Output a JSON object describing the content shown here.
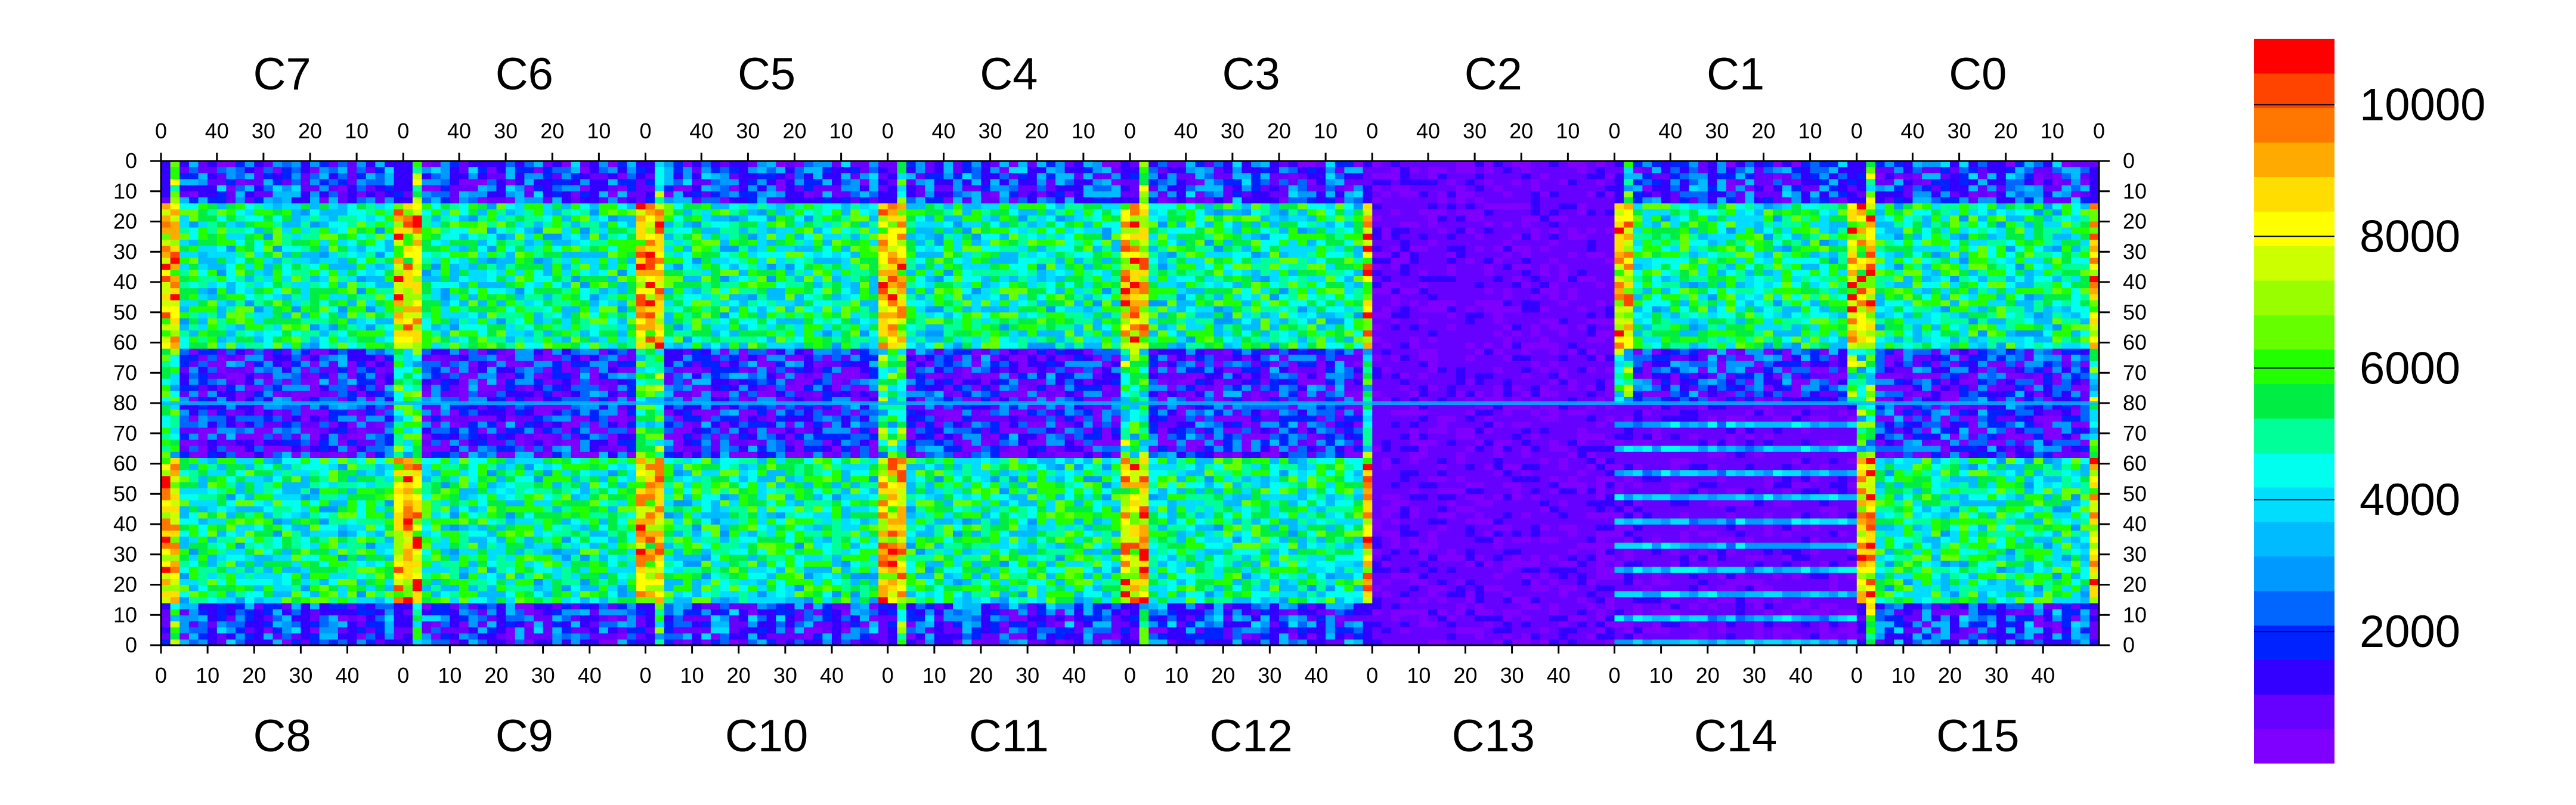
{
  "chart_data": {
    "type": "heatmap",
    "title": "",
    "chips_top": [
      "C7",
      "C6",
      "C5",
      "C4",
      "C3",
      "C2",
      "C1",
      "C0"
    ],
    "chips_bottom": [
      "C8",
      "C9",
      "C10",
      "C11",
      "C12",
      "C13",
      "C14",
      "C15"
    ],
    "top_x_ticks": [
      "40",
      "30",
      "20",
      "10",
      "0"
    ],
    "bottom_x_ticks": [
      "0",
      "10",
      "20",
      "30",
      "40"
    ],
    "top_right_end_tick": "0",
    "y_ticks": [
      "0",
      "10",
      "20",
      "30",
      "40",
      "50",
      "60",
      "70",
      "80",
      "70",
      "60",
      "50",
      "40",
      "30",
      "20",
      "10",
      "0"
    ],
    "colorbar": {
      "min": 0,
      "max": 11000,
      "tick_labels": [
        "2000",
        "4000",
        "6000",
        "8000",
        "10000"
      ],
      "tick_values": [
        2000,
        4000,
        6000,
        8000,
        10000
      ],
      "colors": [
        "#7f00ff",
        "#6600ff",
        "#3300ff",
        "#0022ff",
        "#0066ff",
        "#0099ff",
        "#00bbff",
        "#00ddff",
        "#00ffee",
        "#00ff99",
        "#00ee44",
        "#22ff00",
        "#66ff00",
        "#99ff00",
        "#ccff00",
        "#ffff00",
        "#ffdd00",
        "#ffaa00",
        "#ff7700",
        "#ff4400",
        "#ff0000"
      ]
    },
    "summary": "Occupancy map of 16 readout chips (C0–C15), 52 columns × 80 rows each; levels range from 0 to ~11000 with hot double-columns near chip edges and a quiet region over C13/C14."
  }
}
